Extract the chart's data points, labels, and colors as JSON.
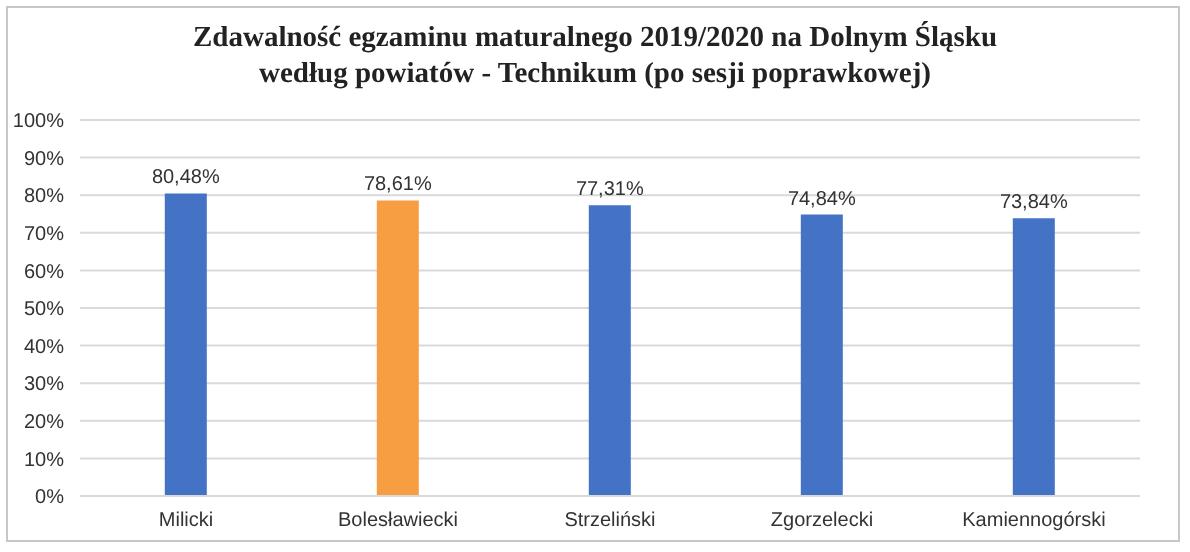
{
  "chart_data": {
    "type": "bar",
    "title": "Zdawalność  egzaminu  maturalnego  2019/2020  na  Dolnym  Śląsku\nwedług  powiatów  - Technikum  (po  sesji  poprawkowej)",
    "categories": [
      "Milicki",
      "Bolesławiecki",
      "Strzeliński",
      "Zgorzelecki",
      "Kamiennogórski"
    ],
    "values": [
      80.48,
      78.61,
      77.31,
      74.84,
      73.84
    ],
    "colors": [
      "#4472c4",
      "#f79d42",
      "#4472c4",
      "#4472c4",
      "#4472c4"
    ],
    "value_labels": [
      "80,48%",
      "78,61%",
      "77,31%",
      "74,84%",
      "73,84%"
    ],
    "ylim": [
      0,
      100
    ],
    "yticks": [
      {
        "value": 0,
        "label": "0%"
      },
      {
        "value": 10,
        "label": "10%"
      },
      {
        "value": 20,
        "label": "20%"
      },
      {
        "value": 30,
        "label": "30%"
      },
      {
        "value": 40,
        "label": "40%"
      },
      {
        "value": 50,
        "label": "50%"
      },
      {
        "value": 60,
        "label": "60%"
      },
      {
        "value": 70,
        "label": "70%"
      },
      {
        "value": 80,
        "label": "80%"
      },
      {
        "value": 90,
        "label": "90%"
      },
      {
        "value": 100,
        "label": "100%"
      }
    ],
    "grid": "y"
  }
}
